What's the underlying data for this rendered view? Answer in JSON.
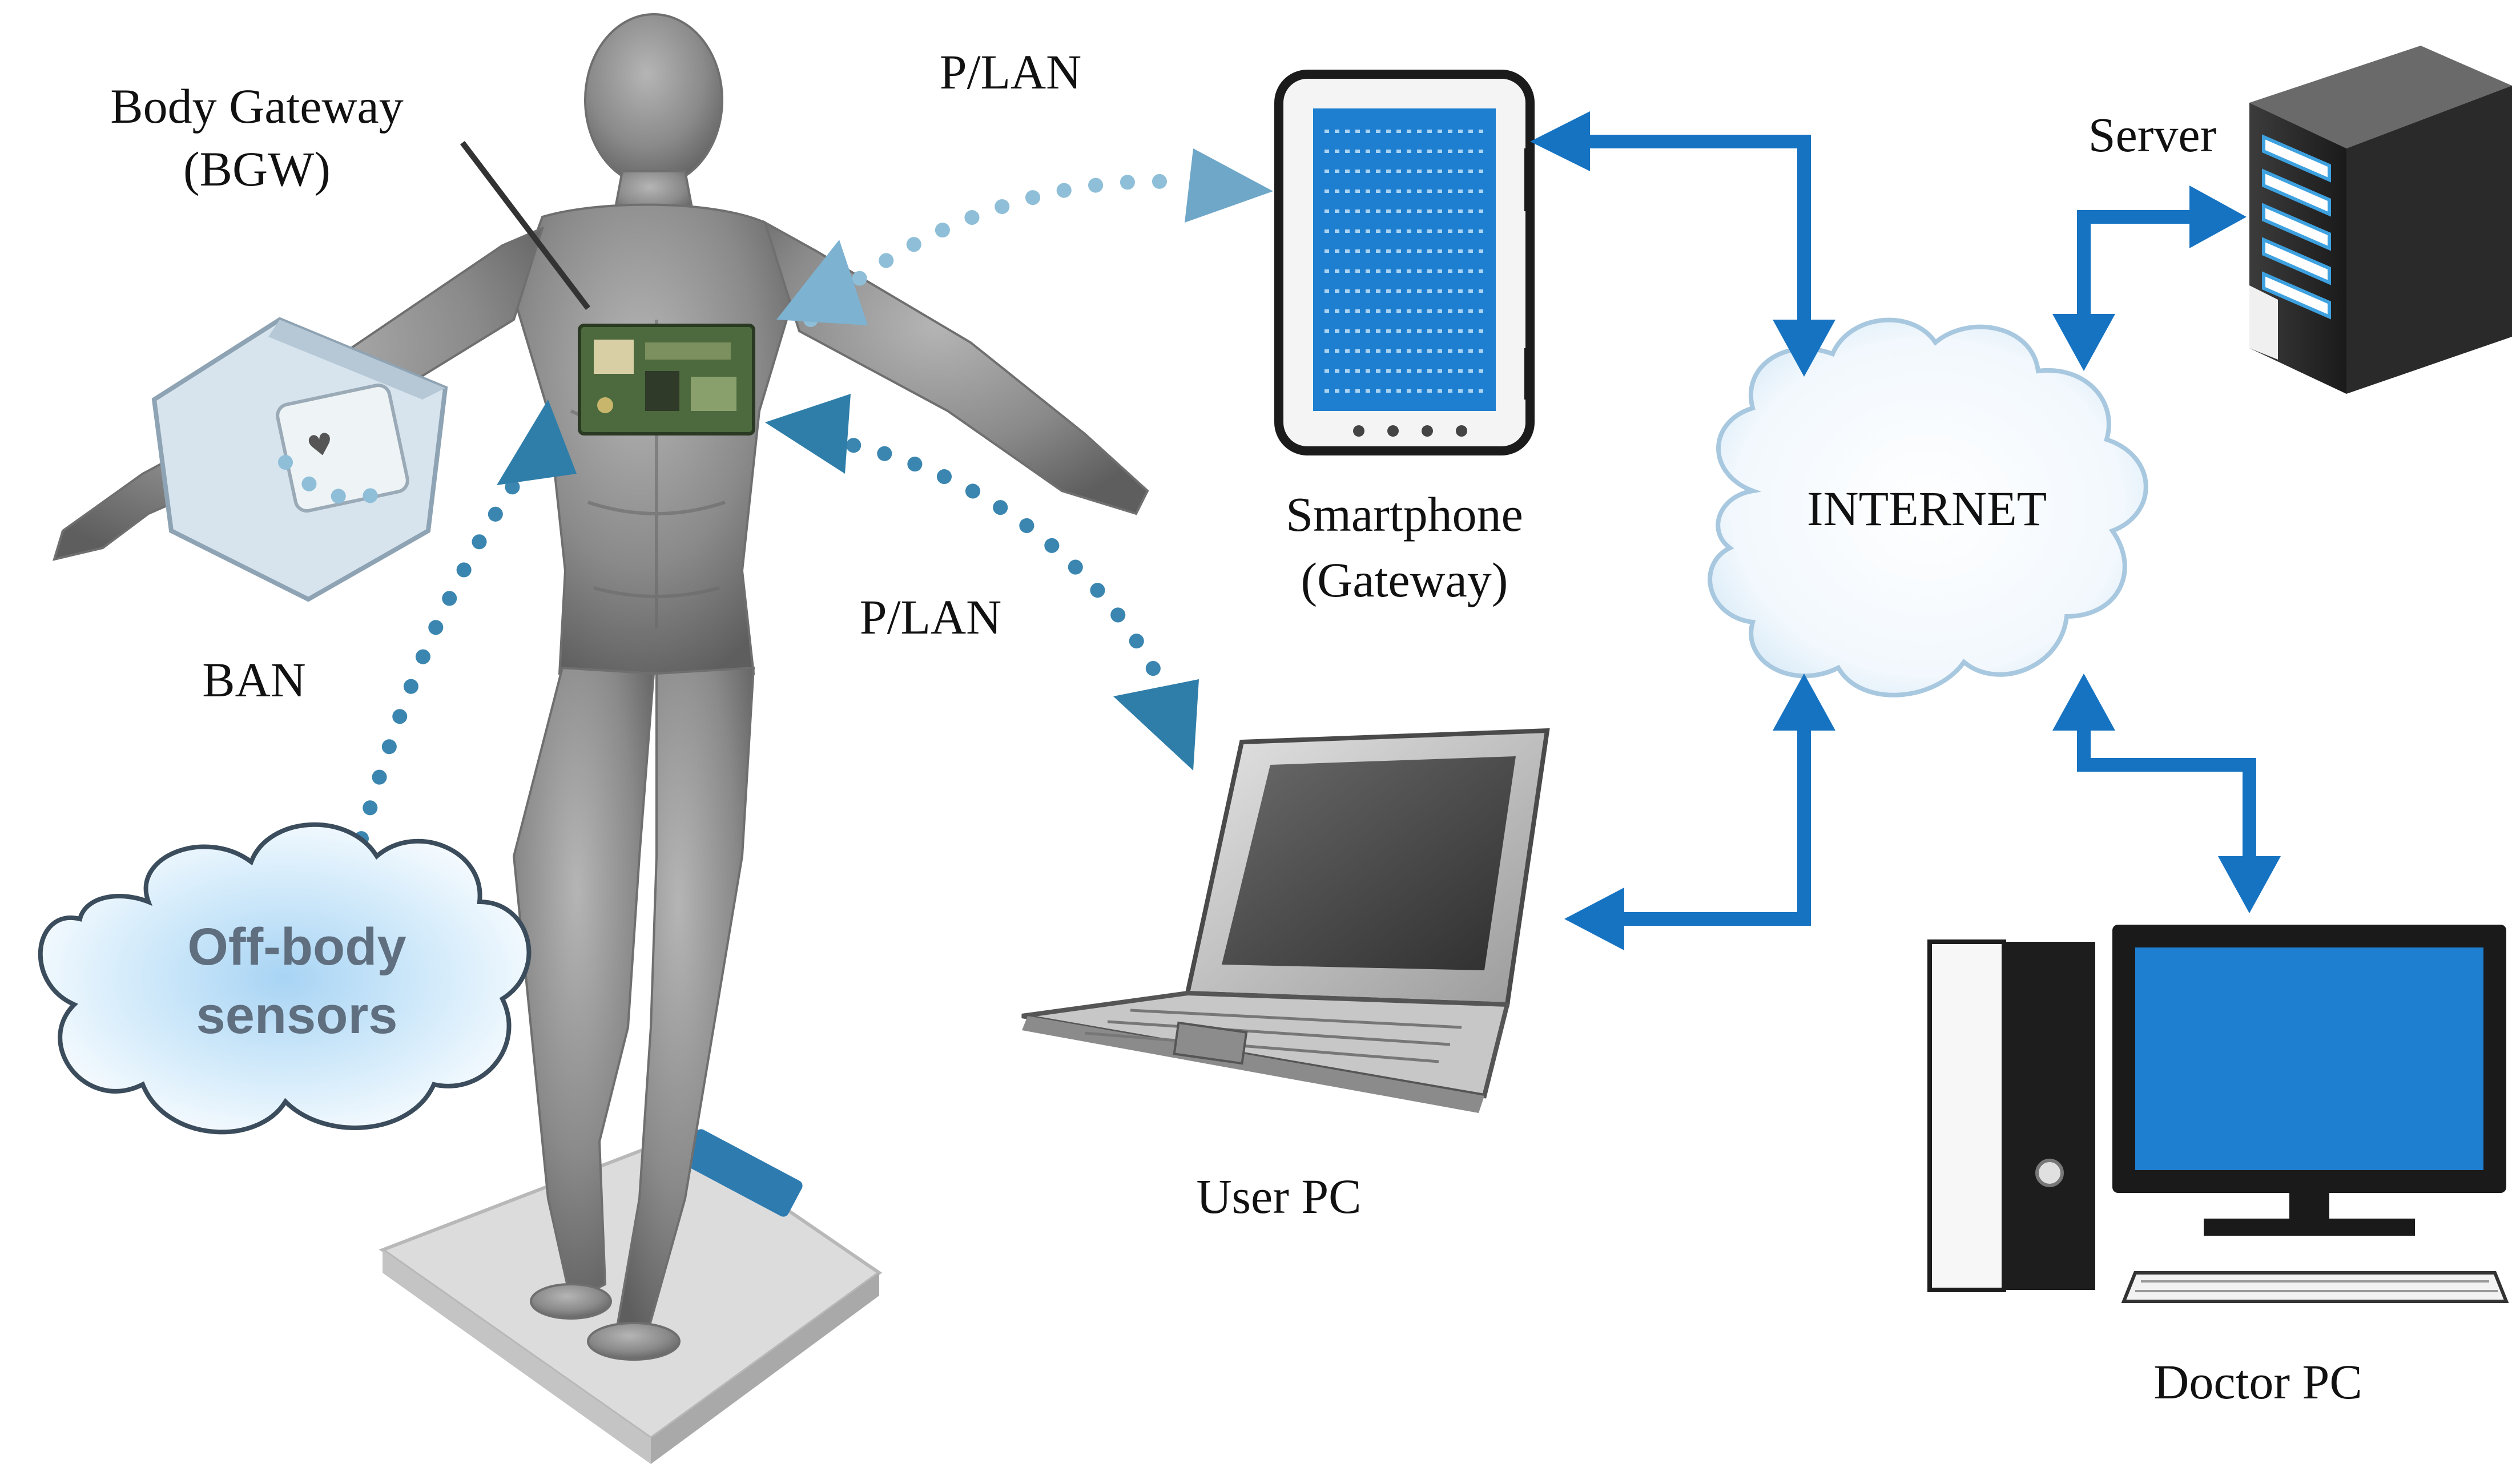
{
  "labels": {
    "body_gateway_line1": "Body Gateway",
    "body_gateway_line2": "(BGW)",
    "plan_top": "P/LAN",
    "plan_bottom": "P/LAN",
    "ban": "BAN",
    "off_body_line1": "Off-body",
    "off_body_line2": "sensors",
    "smartphone_line1": "Smartphone",
    "smartphone_line2": "(Gateway)",
    "internet": "INTERNET",
    "server": "Server",
    "user_pc": "User PC",
    "doctor_pc": "Doctor PC"
  },
  "colors": {
    "link_blue": "#1673c2",
    "wireless_light": "#8fbfd8",
    "wireless_dark": "#3a86b0",
    "screen_blue": "#1e7fd0",
    "body_gray": "#8a8a8a"
  },
  "icons": [
    "human-figure",
    "chest-sensor-board",
    "wrist-sensor",
    "weight-scale",
    "smartphone-icon",
    "laptop-icon",
    "server-icon",
    "desktop-pc-icon",
    "internet-cloud-icon",
    "off-body-cloud-icon"
  ]
}
